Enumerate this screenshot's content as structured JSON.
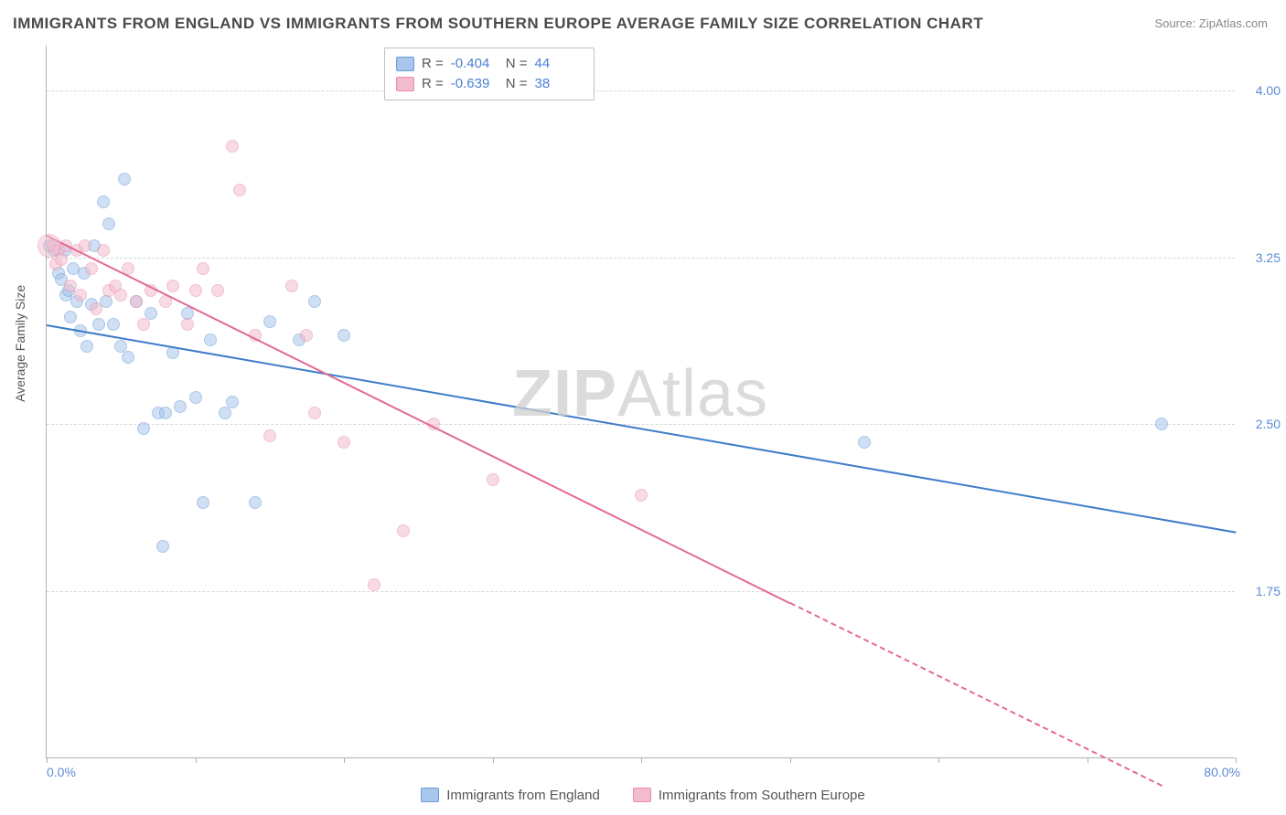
{
  "title": "IMMIGRANTS FROM ENGLAND VS IMMIGRANTS FROM SOUTHERN EUROPE AVERAGE FAMILY SIZE CORRELATION CHART",
  "source": "Source: ZipAtlas.com",
  "ylabel": "Average Family Size",
  "watermark_bold": "ZIP",
  "watermark_rest": "Atlas",
  "chart": {
    "type": "scatter",
    "xlim": [
      0,
      80
    ],
    "ylim": [
      1.0,
      4.2
    ],
    "x_unit": "%",
    "ytick_vals": [
      1.75,
      2.5,
      3.25,
      4.0
    ],
    "ytick_labels": [
      "1.75",
      "2.50",
      "3.25",
      "4.00"
    ],
    "xtick_vals": [
      0,
      10,
      20,
      30,
      40,
      50,
      60,
      70,
      80
    ],
    "xlabel_min": "0.0%",
    "xlabel_max": "80.0%",
    "grid_color": "#d8d8d8",
    "background_color": "#ffffff",
    "axis_color": "#b0b0b0",
    "tick_label_color": "#5b8bd4",
    "point_radius": 7,
    "point_opacity": 0.55,
    "series": [
      {
        "name": "Immigrants from England",
        "color_fill": "#a9c6ec",
        "color_stroke": "#6a9bd8",
        "trend_color": "#3d7cc9",
        "R": "-0.404",
        "N": "44",
        "trend": {
          "x1": 0,
          "y1": 2.95,
          "x2": 80,
          "y2": 2.02,
          "dash": false
        },
        "points": [
          [
            0.5,
            3.28
          ],
          [
            0.8,
            3.18
          ],
          [
            1.0,
            3.15
          ],
          [
            1.2,
            3.28
          ],
          [
            1.3,
            3.08
          ],
          [
            1.5,
            3.1
          ],
          [
            1.6,
            2.98
          ],
          [
            1.8,
            3.2
          ],
          [
            2.0,
            3.05
          ],
          [
            2.3,
            2.92
          ],
          [
            2.5,
            3.18
          ],
          [
            2.7,
            2.85
          ],
          [
            3.0,
            3.04
          ],
          [
            3.2,
            3.3
          ],
          [
            3.5,
            2.95
          ],
          [
            3.8,
            3.5
          ],
          [
            4.0,
            3.05
          ],
          [
            4.2,
            3.4
          ],
          [
            4.5,
            2.95
          ],
          [
            5.0,
            2.85
          ],
          [
            5.2,
            3.6
          ],
          [
            5.5,
            2.8
          ],
          [
            6.0,
            3.05
          ],
          [
            6.5,
            2.48
          ],
          [
            7.0,
            3.0
          ],
          [
            7.5,
            2.55
          ],
          [
            7.8,
            1.95
          ],
          [
            8.0,
            2.55
          ],
          [
            8.5,
            2.82
          ],
          [
            9.0,
            2.58
          ],
          [
            9.5,
            3.0
          ],
          [
            10.0,
            2.62
          ],
          [
            10.5,
            2.15
          ],
          [
            11.0,
            2.88
          ],
          [
            12.0,
            2.55
          ],
          [
            12.5,
            2.6
          ],
          [
            14.0,
            2.15
          ],
          [
            15.0,
            2.96
          ],
          [
            17.0,
            2.88
          ],
          [
            18.0,
            3.05
          ],
          [
            20.0,
            2.9
          ],
          [
            55.0,
            2.42
          ],
          [
            75.0,
            2.5
          ],
          [
            0.2,
            3.3
          ]
        ]
      },
      {
        "name": "Immigrants from Southern Europe",
        "color_fill": "#f3bccd",
        "color_stroke": "#e88fae",
        "trend_color": "#e26a95",
        "R": "-0.639",
        "N": "38",
        "trend_solid": {
          "x1": 0,
          "y1": 3.35,
          "x2": 50,
          "y2": 1.7
        },
        "trend_dash": {
          "x1": 50,
          "y1": 1.7,
          "x2": 75,
          "y2": 0.88
        },
        "points": [
          [
            0.4,
            3.3
          ],
          [
            0.6,
            3.22
          ],
          [
            0.8,
            3.28
          ],
          [
            1.0,
            3.24
          ],
          [
            1.3,
            3.3
          ],
          [
            1.6,
            3.12
          ],
          [
            2.0,
            3.28
          ],
          [
            2.3,
            3.08
          ],
          [
            2.6,
            3.3
          ],
          [
            3.0,
            3.2
          ],
          [
            3.3,
            3.02
          ],
          [
            3.8,
            3.28
          ],
          [
            4.2,
            3.1
          ],
          [
            4.6,
            3.12
          ],
          [
            5.0,
            3.08
          ],
          [
            5.5,
            3.2
          ],
          [
            6.0,
            3.05
          ],
          [
            6.5,
            2.95
          ],
          [
            7.0,
            3.1
          ],
          [
            8.0,
            3.05
          ],
          [
            8.5,
            3.12
          ],
          [
            9.5,
            2.95
          ],
          [
            10.0,
            3.1
          ],
          [
            10.5,
            3.2
          ],
          [
            11.5,
            3.1
          ],
          [
            12.5,
            3.75
          ],
          [
            13.0,
            3.55
          ],
          [
            14.0,
            2.9
          ],
          [
            15.0,
            2.45
          ],
          [
            16.5,
            3.12
          ],
          [
            17.5,
            2.9
          ],
          [
            18.0,
            2.55
          ],
          [
            20.0,
            2.42
          ],
          [
            22.0,
            1.78
          ],
          [
            24.0,
            2.02
          ],
          [
            26.0,
            2.5
          ],
          [
            30.0,
            2.25
          ],
          [
            40.0,
            2.18
          ]
        ]
      }
    ]
  },
  "legend_top": {
    "r_label": "R =",
    "n_label": "N ="
  },
  "legend_bottom": {
    "items": [
      "Immigrants from England",
      "Immigrants from Southern Europe"
    ]
  }
}
